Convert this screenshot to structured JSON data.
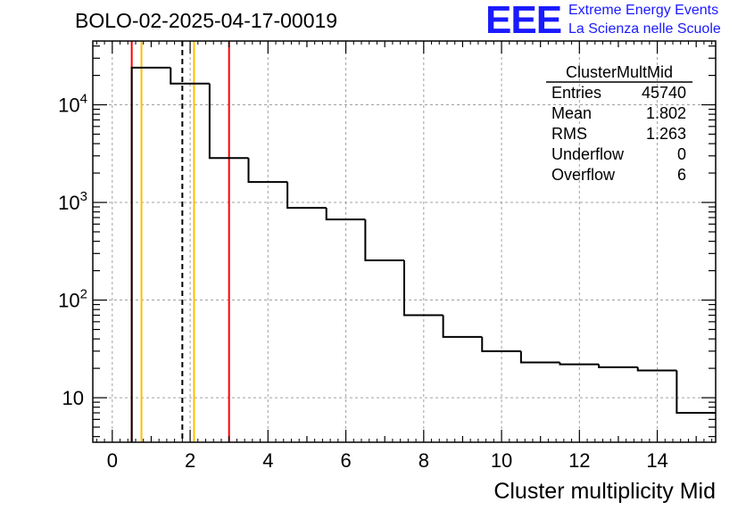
{
  "header": {
    "run_title": "BOLO-02-2025-04-17-00019",
    "logo_text": "EEE",
    "logo_line1": "Extreme Energy Events",
    "logo_line2": "La Scienza nelle Scuole"
  },
  "colors": {
    "frame": "#000000",
    "histogram": "#000000",
    "grid": "#a0a0a0",
    "red_line": "#ff0000",
    "orange_line": "#ffbf00",
    "mean_line": "#000000",
    "logo": "#1a1aff"
  },
  "chart_data": {
    "type": "histogram",
    "xlabel": "Cluster multiplicity Mid",
    "ylabel": "",
    "xlim": [
      -0.5,
      15.5
    ],
    "ylim": [
      3.5,
      45000
    ],
    "y_scale": "log",
    "grid": true,
    "x_ticks": [
      "0",
      "2",
      "4",
      "6",
      "8",
      "10",
      "12",
      "14"
    ],
    "y_ticks": [
      {
        "base": "10",
        "exp": "4",
        "value": 10000
      },
      {
        "base": "10",
        "exp": "3",
        "value": 1000
      },
      {
        "base": "10",
        "exp": "2",
        "value": 100
      },
      {
        "base": "10",
        "exp": "",
        "value": 10
      }
    ],
    "bins": [
      {
        "low": 0.5,
        "high": 1.5,
        "count": 24000
      },
      {
        "low": 1.5,
        "high": 2.5,
        "count": 16500
      },
      {
        "low": 2.5,
        "high": 3.5,
        "count": 2850
      },
      {
        "low": 3.5,
        "high": 4.5,
        "count": 1620
      },
      {
        "low": 4.5,
        "high": 5.5,
        "count": 880
      },
      {
        "low": 5.5,
        "high": 6.5,
        "count": 670
      },
      {
        "low": 6.5,
        "high": 7.5,
        "count": 255
      },
      {
        "low": 7.5,
        "high": 8.5,
        "count": 70
      },
      {
        "low": 8.5,
        "high": 9.5,
        "count": 42
      },
      {
        "low": 9.5,
        "high": 10.5,
        "count": 30
      },
      {
        "low": 10.5,
        "high": 11.5,
        "count": 23
      },
      {
        "low": 11.5,
        "high": 12.5,
        "count": 22
      },
      {
        "low": 12.5,
        "high": 13.5,
        "count": 20.5
      },
      {
        "low": 13.5,
        "high": 14.5,
        "count": 19
      },
      {
        "low": 14.5,
        "high": 15.5,
        "count": 7
      }
    ],
    "vertical_lines": [
      {
        "x": 0.5,
        "color": "#ff0000",
        "style": "solid"
      },
      {
        "x": 3.0,
        "color": "#ff0000",
        "style": "solid"
      },
      {
        "x": 0.75,
        "color": "#ffbf00",
        "style": "solid"
      },
      {
        "x": 2.1,
        "color": "#ffbf00",
        "style": "solid"
      },
      {
        "x": 1.8,
        "color": "#000000",
        "style": "dashed"
      }
    ],
    "stats": {
      "title": "ClusterMultMid",
      "rows": [
        {
          "label": "Entries",
          "value": "45740"
        },
        {
          "label": "Mean",
          "value": "1.802"
        },
        {
          "label": "RMS",
          "value": "1.263"
        },
        {
          "label": "Underflow",
          "value": "0"
        },
        {
          "label": "Overflow",
          "value": "6"
        }
      ]
    }
  }
}
